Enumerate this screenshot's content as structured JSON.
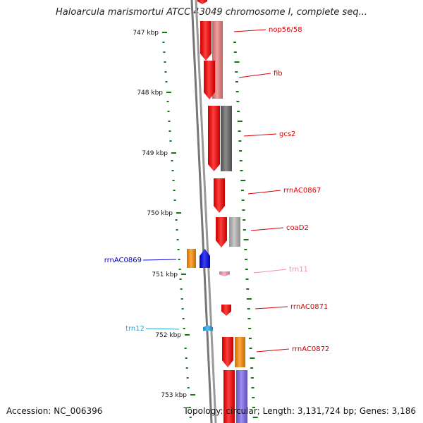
{
  "title": "Haloarcula marismortui ATCC 43049 chromosome I, complete seq...",
  "footer": {
    "accession": "Accession: NC_006396",
    "stats": "Topology: circular; Length: 3,131,724 bp; Genes: 3,186"
  },
  "ticks": [
    "747 kbp",
    "748 kbp",
    "749 kbp",
    "750 kbp",
    "751 kbp",
    "752 kbp",
    "753 kbp"
  ],
  "genes": [
    {
      "name": "nop56/58",
      "color": "#dd0000"
    },
    {
      "name": "fib",
      "color": "#dd0000"
    },
    {
      "name": "gcs2",
      "color": "#dd0000"
    },
    {
      "name": "rrnAC0867",
      "color": "#dd0000"
    },
    {
      "name": "coaD2",
      "color": "#dd0000"
    },
    {
      "name": "rrnAC0869",
      "color": "#0000cc"
    },
    {
      "name": "trn11",
      "color": "#f08cc0"
    },
    {
      "name": "rrnAC0871",
      "color": "#dd0000"
    },
    {
      "name": "trn12",
      "color": "#22aadd"
    },
    {
      "name": "rrnAC0872",
      "color": "#dd0000"
    }
  ],
  "colors": {
    "backbone": "#888888",
    "tick": "#117711",
    "cds": "#ff0000",
    "cog_salmon": "#f08080",
    "cog_gray": "#666666",
    "cog_lightgray": "#b8b8b8",
    "cog_orange": "#ff8c00",
    "cog_blue": "#0000ee",
    "cog_purple": "#7b68ee",
    "trna_pink": "#f49ac1",
    "trna_cyan": "#22aaee"
  }
}
